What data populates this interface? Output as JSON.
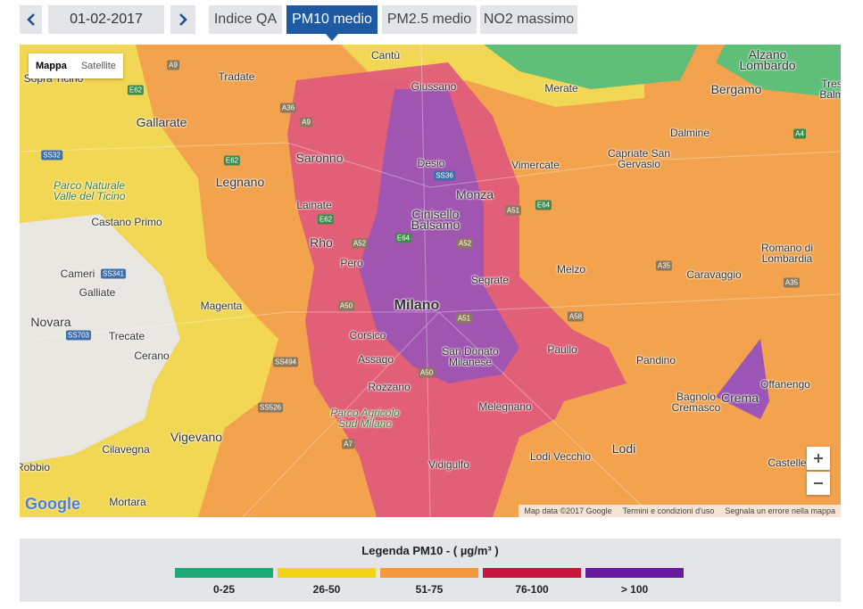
{
  "toolbar": {
    "date": "01-02-2017",
    "tabs": [
      "Indice QA",
      "PM10 medio",
      "PM2.5 medio",
      "NO2 massimo"
    ],
    "active_tab": 1
  },
  "map": {
    "map_types": [
      "Mappa",
      "Satellite"
    ],
    "places": [
      "Cantù",
      "Tradate",
      "Giussano",
      "Merate",
      "Alzano Lombardo",
      "Bergamo",
      "Gallarate",
      "Dalmine",
      "Saronno",
      "Desio",
      "Vimercate",
      "Capriate San Gervasio",
      "Legnano",
      "Parco Naturale Valle del Ticino",
      "Monza",
      "Lainate",
      "Cinisello Balsamo",
      "Castano Primo",
      "Rho",
      "Romano di Lombardia",
      "Pero",
      "Melzo",
      "Caravaggio",
      "Cameri",
      "Galliate",
      "Segrate",
      "Magenta",
      "Milano",
      "Novara",
      "Trecate",
      "Corsico",
      "Paullo",
      "Cerano",
      "Assago",
      "San Donato Milanese",
      "Pandino",
      "Offanengo",
      "Rozzano",
      "Bagnolo Cremasco",
      "Crema",
      "Parco Agricolo Sud Milano",
      "Melegnano",
      "Vigevano",
      "Lodi",
      "Cilavegna",
      "Lodi Vecchio",
      "Vidigulfo",
      "Robbio",
      "Castelle",
      "Mortara",
      "Sopra Ticino",
      "Tres Balm"
    ],
    "roads": [
      "A9",
      "E62",
      "A36",
      "A9",
      "SS32",
      "E62",
      "SS36",
      "A51",
      "E64",
      "A4",
      "E62",
      "A52",
      "E64",
      "A52",
      "SS341",
      "A35",
      "A35",
      "A50",
      "A58",
      "A51",
      "SS703",
      "SS494",
      "A50",
      "SS526",
      "A7"
    ],
    "logo": "Google",
    "attribution": [
      "Map data ©2017 Google",
      "Termini e condizioni d'uso",
      "Segnala un errore nella mappa"
    ]
  },
  "legend": {
    "title": "Legenda PM10 - ( µg/m³ )",
    "items": [
      {
        "label": "0-25",
        "color": "#1fa878"
      },
      {
        "label": "26-50",
        "color": "#f5d316"
      },
      {
        "label": "51-75",
        "color": "#f5993e"
      },
      {
        "label": "76-100",
        "color": "#c8163f"
      },
      {
        "label": "> 100",
        "color": "#6a1a9e"
      }
    ]
  }
}
